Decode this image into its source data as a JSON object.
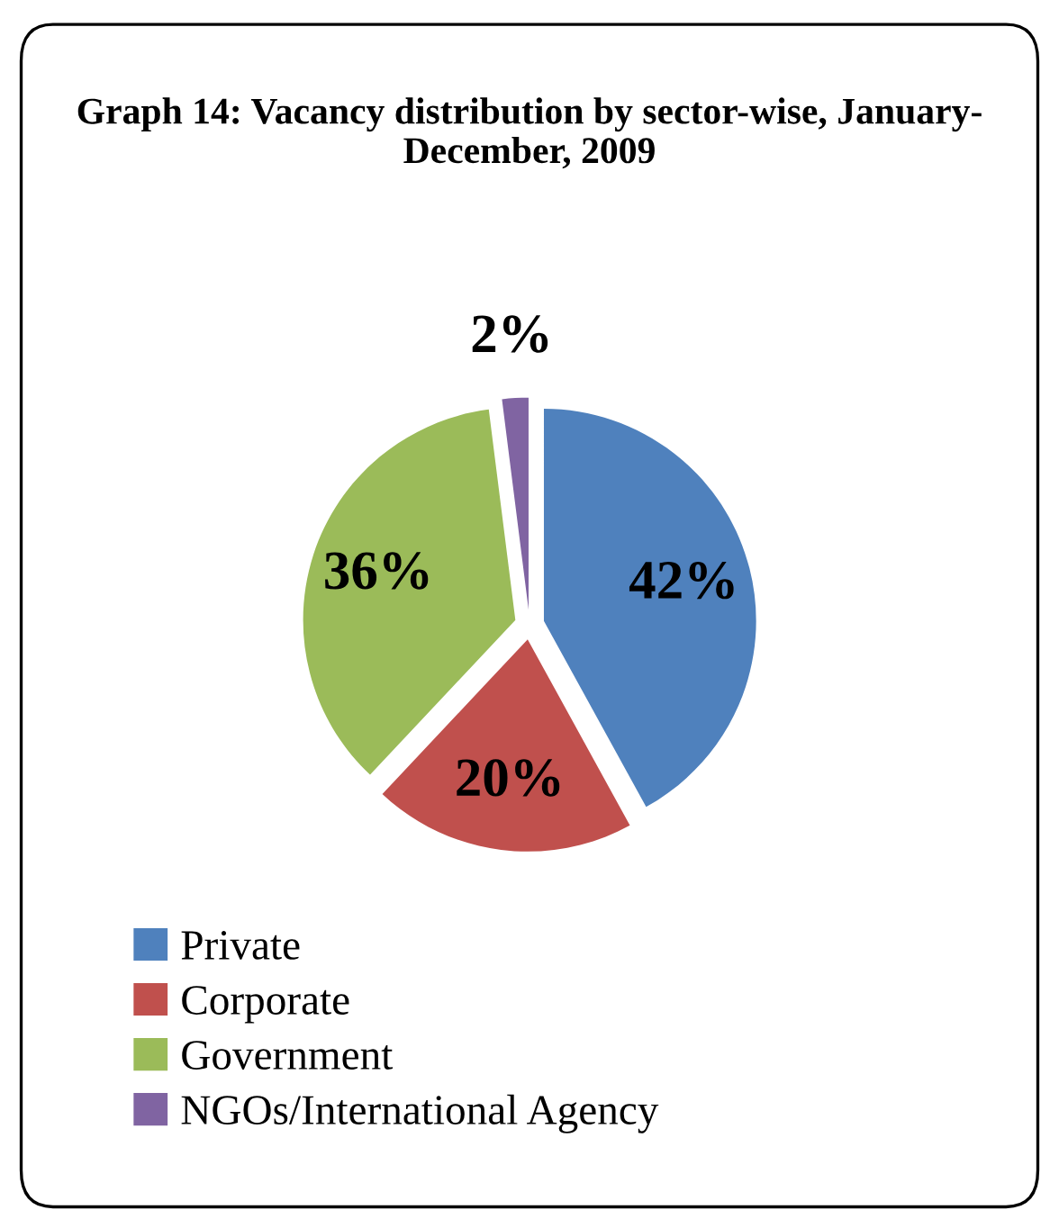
{
  "chart_data": {
    "type": "pie",
    "title": "Graph 14: Vacancy distribution by sector-wise, January- December, 2009",
    "categories": [
      "Private",
      "Corporate",
      "Government",
      "NGOs/International Agency"
    ],
    "values": [
      42,
      20,
      36,
      2
    ],
    "colors": [
      "#4f81bd",
      "#c0504d",
      "#9bbb59",
      "#8064a2"
    ],
    "value_labels": [
      "42%",
      "20%",
      "36%",
      "2%"
    ],
    "legend": "bottom"
  }
}
